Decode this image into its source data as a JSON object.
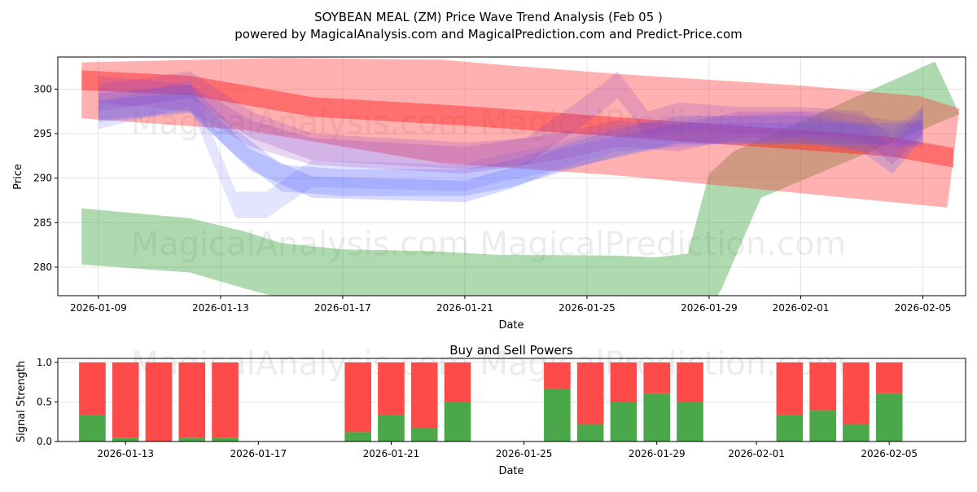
{
  "title": "SOYBEAN MEAL (ZM) Price Wave Trend Analysis (Feb 05 )",
  "subtitle": "powered by MagicalAnalysis.com and MagicalPrediction.com and Predict-Price.com",
  "watermark": "MagicalAnalysis.com   MagicalPrediction.com",
  "chart_data": [
    {
      "type": "area",
      "title": "",
      "xlabel": "Date",
      "ylabel": "Price",
      "x_unit": "day of 2026 (Jan 1 = 1, Feb 1 = 32)",
      "xlim": [
        7.67,
        37.4
      ],
      "ylim": [
        276.8,
        303.6
      ],
      "grid": true,
      "yticks": [
        280,
        285,
        290,
        295,
        300
      ],
      "xticks": [
        {
          "day": 9,
          "label": "2026-01-09"
        },
        {
          "day": 13,
          "label": "2026-01-13"
        },
        {
          "day": 17,
          "label": "2026-01-17"
        },
        {
          "day": 21,
          "label": "2026-01-21"
        },
        {
          "day": 25,
          "label": "2026-01-25"
        },
        {
          "day": 29,
          "label": "2026-01-29"
        },
        {
          "day": 32,
          "label": "2026-02-01"
        },
        {
          "day": 36,
          "label": "2026-02-05"
        }
      ],
      "bands": [
        {
          "name": "long-term-up-band",
          "color": "#2e9a2e",
          "opacity": 0.38,
          "upper": [
            [
              8.45,
              286.6
            ],
            [
              12,
              285.5
            ],
            [
              13.8,
              284
            ],
            [
              15,
              282.7
            ],
            [
              17,
              282
            ],
            [
              19.9,
              281.8
            ],
            [
              22,
              281.4
            ],
            [
              26,
              281.3
            ],
            [
              27.2,
              281.1
            ],
            [
              28.3,
              281.5
            ],
            [
              29.0,
              290.5
            ],
            [
              29.8,
              293
            ],
            [
              36.4,
              303.1
            ],
            [
              37.2,
              297.2
            ]
          ],
          "lower": [
            [
              8.45,
              280.3
            ],
            [
              12,
              279.4
            ],
            [
              13.8,
              277.6
            ],
            [
              15,
              276.5
            ],
            [
              17,
              275.8
            ],
            [
              22,
              275.5
            ],
            [
              26,
              275.5
            ],
            [
              29.1,
              275.8
            ],
            [
              29.4,
              277.5
            ],
            [
              30.7,
              287.8
            ],
            [
              37.2,
              297.2
            ]
          ]
        },
        {
          "name": "wide-red-band",
          "color": "#ff3b3b",
          "opacity": 0.4,
          "upper": [
            [
              8.45,
              303.0
            ],
            [
              15,
              303.5
            ],
            [
              20.2,
              303.3
            ],
            [
              22.6,
              302.6
            ],
            [
              26,
              301.7
            ],
            [
              32,
              300.4
            ],
            [
              35.9,
              299.2
            ],
            [
              37.2,
              297.8
            ]
          ],
          "lower": [
            [
              8.45,
              296.7
            ],
            [
              13.8,
              295.4
            ],
            [
              20.2,
              291.7
            ],
            [
              26,
              290.3
            ],
            [
              32,
              288.3
            ],
            [
              36.8,
              286.7
            ]
          ]
        },
        {
          "name": "narrow-red-band",
          "color": "#ff2020",
          "opacity": 0.45,
          "half": 1.1,
          "center": [
            [
              8.45,
              301
            ],
            [
              12,
              300.4
            ],
            [
              13.5,
              299.5
            ],
            [
              16,
              298
            ],
            [
              21,
              297
            ],
            [
              25,
              296
            ],
            [
              29,
              295
            ],
            [
              32,
              294.3
            ],
            [
              35,
              293.5
            ],
            [
              37,
              292.3
            ]
          ]
        },
        {
          "name": "blue-band-a",
          "color": "#4b5bff",
          "opacity": 0.22,
          "half": 1.5,
          "center": [
            [
              9,
              298
            ],
            [
              12,
              299
            ],
            [
              13.5,
              294
            ],
            [
              15,
              290
            ],
            [
              17,
              289.5
            ],
            [
              21,
              289.5
            ],
            [
              22.5,
              290.5
            ],
            [
              25,
              293
            ],
            [
              26,
              294
            ],
            [
              28,
              295.5
            ],
            [
              32,
              295.5
            ],
            [
              34,
              294.5
            ],
            [
              35,
              292
            ],
            [
              36,
              296
            ]
          ]
        },
        {
          "name": "blue-band-b",
          "color": "#6a6aff",
          "opacity": 0.18,
          "half": 1.5,
          "center": [
            [
              9,
              297
            ],
            [
              12,
              299.5
            ],
            [
              13.5,
              287
            ],
            [
              14.5,
              287
            ],
            [
              16,
              290.5
            ],
            [
              21,
              290
            ],
            [
              22,
              291
            ],
            [
              23.5,
              292
            ],
            [
              26,
              294.5
            ],
            [
              28,
              295
            ],
            [
              32,
              296
            ],
            [
              35,
              294
            ],
            [
              36,
              296.5
            ]
          ]
        },
        {
          "name": "blue-band-e",
          "color": "#4b5bff",
          "opacity": 0.22,
          "half": 1.2,
          "center": [
            [
              9,
              297.5
            ],
            [
              12,
              298.5
            ],
            [
              14,
              292
            ],
            [
              16,
              289
            ],
            [
              21,
              288.5
            ],
            [
              22.5,
              290
            ],
            [
              24,
              292
            ],
            [
              28,
              295
            ],
            [
              32,
              295
            ],
            [
              36,
              295
            ]
          ]
        },
        {
          "name": "purple-band-c",
          "color": "#9040c0",
          "opacity": 0.22,
          "half": 1.5,
          "center": [
            [
              9,
              299
            ],
            [
              12,
              300.5
            ],
            [
              14,
              296
            ],
            [
              16,
              293.5
            ],
            [
              21,
              292.5
            ],
            [
              23,
              293
            ],
            [
              25.5,
              299
            ],
            [
              26,
              300.5
            ],
            [
              27,
              296
            ],
            [
              28,
              297
            ],
            [
              30,
              296.5
            ],
            [
              32,
              296.5
            ],
            [
              34,
              296
            ],
            [
              35,
              293
            ],
            [
              36,
              296.5
            ]
          ]
        },
        {
          "name": "purple-band-d",
          "color": "#9040c0",
          "opacity": 0.22,
          "half": 1.5,
          "center": [
            [
              9,
              300
            ],
            [
              12,
              299
            ],
            [
              14,
              295
            ],
            [
              16,
              293
            ],
            [
              21,
              292
            ],
            [
              24,
              293.5
            ],
            [
              26,
              295
            ],
            [
              28,
              294.5
            ],
            [
              30,
              296
            ],
            [
              33,
              296
            ],
            [
              35,
              295
            ],
            [
              36,
              295
            ]
          ]
        }
      ]
    },
    {
      "type": "bar",
      "title": "Buy and Sell Powers",
      "xlabel": "Date",
      "ylabel": "Signal Strength",
      "xlim": [
        10.96,
        38.3
      ],
      "ylim": [
        0,
        1.05
      ],
      "yticks": [
        "0.0",
        "0.5",
        "1.0"
      ],
      "xticks": [
        {
          "day": 13,
          "label": "2026-01-13"
        },
        {
          "day": 17,
          "label": "2026-01-17"
        },
        {
          "day": 21,
          "label": "2026-01-21"
        },
        {
          "day": 25,
          "label": "2026-01-25"
        },
        {
          "day": 29,
          "label": "2026-01-29"
        },
        {
          "day": 32,
          "label": "2026-02-01"
        },
        {
          "day": 36,
          "label": "2026-02-05"
        }
      ],
      "buy_color": "#4aa84a",
      "sell_color": "#ff4a4a",
      "days": [
        12,
        13,
        14,
        15,
        16,
        20,
        21,
        22,
        23,
        26,
        27,
        28,
        29,
        30,
        33,
        34,
        35,
        36
      ],
      "buy": [
        0.33,
        0.05,
        0.0,
        0.05,
        0.05,
        0.12,
        0.33,
        0.17,
        0.5,
        0.67,
        0.22,
        0.5,
        0.61,
        0.5,
        0.33,
        0.39,
        0.22,
        0.61
      ],
      "sell": [
        0.67,
        0.95,
        1.0,
        0.95,
        0.95,
        0.88,
        0.67,
        0.83,
        0.5,
        0.33,
        0.78,
        0.5,
        0.39,
        0.5,
        0.67,
        0.61,
        0.78,
        0.39
      ]
    }
  ]
}
